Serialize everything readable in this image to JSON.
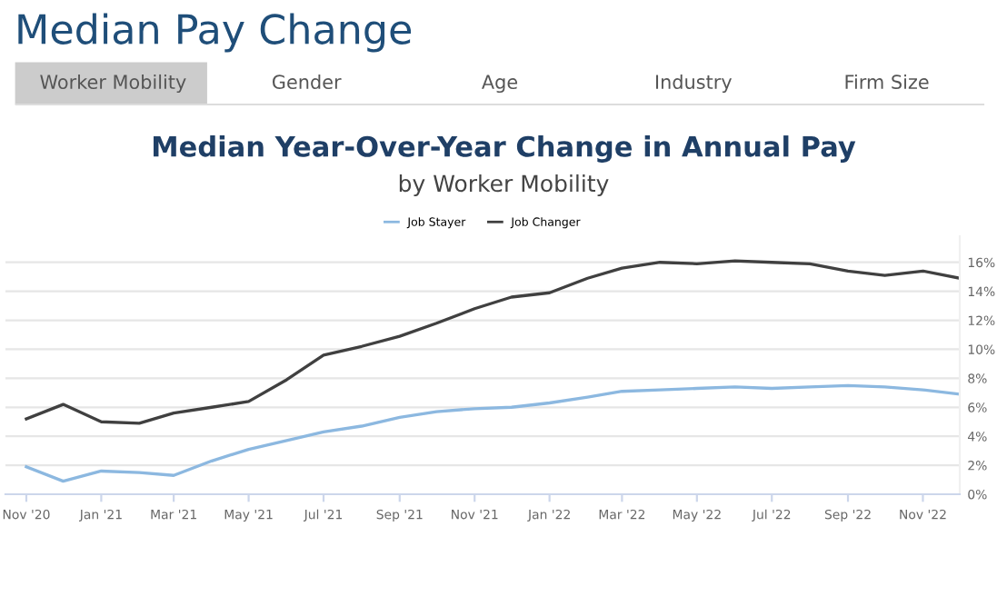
{
  "chart_data": {
    "type": "line",
    "title": "Median Year-Over-Year Change in Annual Pay",
    "subtitle": "by Worker Mobility",
    "annotations": [
      "Median Pay Change",
      "Worker Mobility",
      "Gender",
      "Age",
      "Industry",
      "Firm Size"
    ],
    "x": [
      "2020-11",
      "2020-12",
      "2021-01",
      "2021-02",
      "2021-03",
      "2021-04",
      "2021-05",
      "2021-06",
      "2021-07",
      "2021-08",
      "2021-09",
      "2021-10",
      "2021-11",
      "2021-12",
      "2022-01",
      "2022-02",
      "2022-03",
      "2022-04",
      "2022-05",
      "2022-06",
      "2022-07",
      "2022-08",
      "2022-09",
      "2022-10",
      "2022-11",
      "2022-12"
    ],
    "series": [
      {
        "name": "Job Stayer",
        "color": "#8cb8e0",
        "values": [
          1.9,
          0.9,
          1.6,
          1.5,
          1.3,
          2.3,
          3.1,
          3.7,
          4.3,
          4.7,
          5.3,
          5.7,
          5.9,
          6.0,
          6.3,
          6.7,
          7.1,
          7.2,
          7.3,
          7.4,
          7.3,
          7.4,
          7.5,
          7.4,
          7.2,
          6.9
        ]
      },
      {
        "name": "Job Changer",
        "color": "#404040",
        "values": [
          5.2,
          6.2,
          5.0,
          4.9,
          5.6,
          6.0,
          6.4,
          7.9,
          9.6,
          10.2,
          10.9,
          11.8,
          12.8,
          13.6,
          13.9,
          14.9,
          15.6,
          16.0,
          15.9,
          16.1,
          16.0,
          15.9,
          15.4,
          15.1,
          15.4,
          14.9
        ]
      }
    ],
    "xlim": [
      "2020-10-15",
      "2022-12-01"
    ],
    "xticks": [
      {
        "value": "2020-11",
        "label": "Nov '20"
      },
      {
        "value": "2021-01",
        "label": "Jan '21"
      },
      {
        "value": "2021-03",
        "label": "Mar '21"
      },
      {
        "value": "2021-05",
        "label": "May '21"
      },
      {
        "value": "2021-07",
        "label": "Jul '21"
      },
      {
        "value": "2021-09",
        "label": "Sep '21"
      },
      {
        "value": "2021-11",
        "label": "Nov '21"
      },
      {
        "value": "2022-01",
        "label": "Jan '22"
      },
      {
        "value": "2022-03",
        "label": "Mar '22"
      },
      {
        "value": "2022-05",
        "label": "May '22"
      },
      {
        "value": "2022-07",
        "label": "Jul '22"
      },
      {
        "value": "2022-09",
        "label": "Sep '22"
      },
      {
        "value": "2022-11",
        "label": "Nov '22"
      }
    ],
    "ylim": [
      0,
      17.8
    ],
    "yticks": [
      {
        "value": 0,
        "label": "0%"
      },
      {
        "value": 2,
        "label": "2%"
      },
      {
        "value": 4,
        "label": "4%"
      },
      {
        "value": 6,
        "label": "6%"
      },
      {
        "value": 8,
        "label": "8%"
      },
      {
        "value": 10,
        "label": "10%"
      },
      {
        "value": 12,
        "label": "12%"
      },
      {
        "value": 14,
        "label": "14%"
      },
      {
        "value": 16,
        "label": "16%"
      }
    ],
    "grid": "y",
    "legend": "top",
    "marker": "none",
    "line_style": "solid"
  }
}
